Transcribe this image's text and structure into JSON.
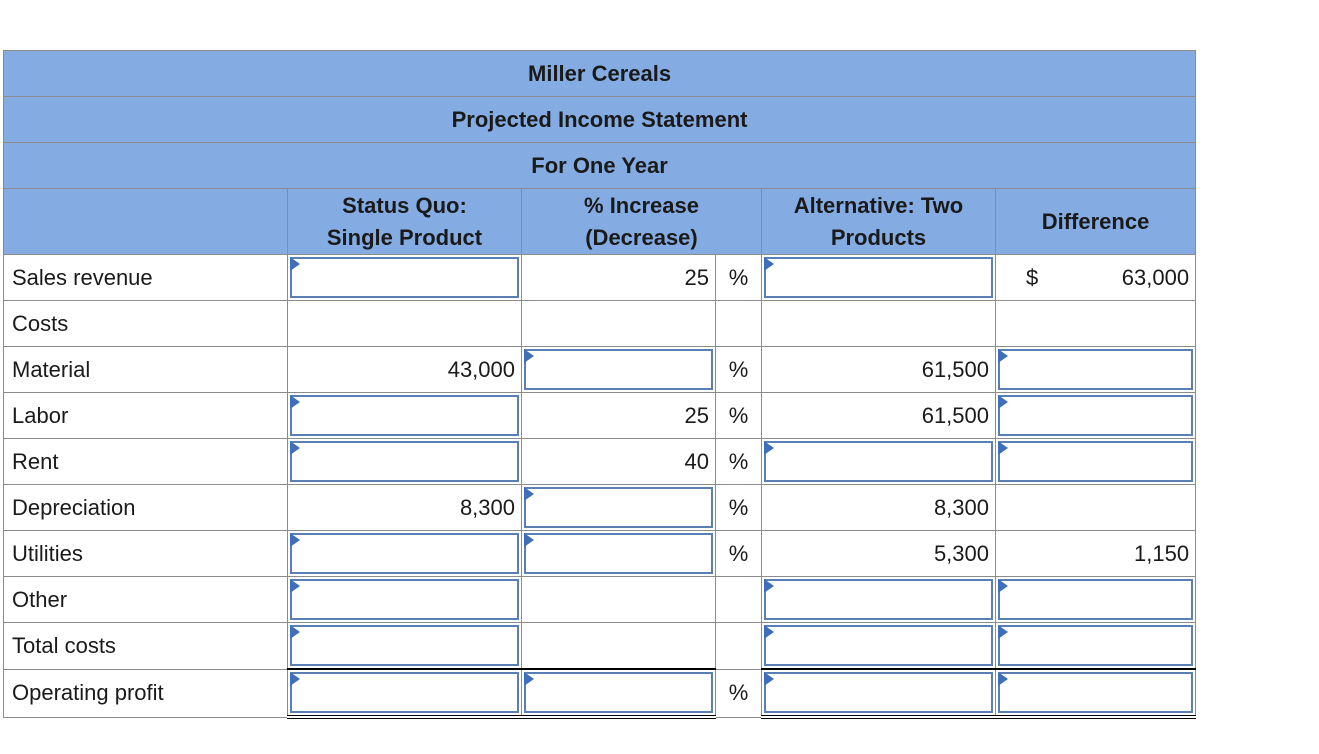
{
  "header": {
    "title_lines": [
      "Miller Cereals",
      "Projected Income Statement",
      "For One Year"
    ],
    "columns": [
      [
        "Status Quo:",
        "Single Product"
      ],
      [
        "% Increase",
        "(Decrease)"
      ],
      [
        "Alternative: Two",
        "Products"
      ],
      [
        "Difference"
      ]
    ]
  },
  "table": {
    "rows": [
      {
        "label": "Sales revenue",
        "pct": "25",
        "pct_unit": "%",
        "difference_currency": "$",
        "difference": "63,000"
      },
      {
        "label": "Costs"
      },
      {
        "label": "Material",
        "status_quo": "43,000",
        "pct_unit": "%",
        "alternative": "61,500"
      },
      {
        "label": "Labor",
        "pct": "25",
        "pct_unit": "%",
        "alternative": "61,500"
      },
      {
        "label": "Rent",
        "pct": "40",
        "pct_unit": "%"
      },
      {
        "label": "Depreciation",
        "status_quo": "8,300",
        "pct_unit": "%",
        "alternative": "8,300"
      },
      {
        "label": "Utilities",
        "pct_unit": "%",
        "alternative": "5,300",
        "difference": "1,150"
      },
      {
        "label": "Other"
      },
      {
        "label": "Total costs"
      },
      {
        "label": "Operating profit",
        "pct_unit": "%"
      }
    ]
  }
}
